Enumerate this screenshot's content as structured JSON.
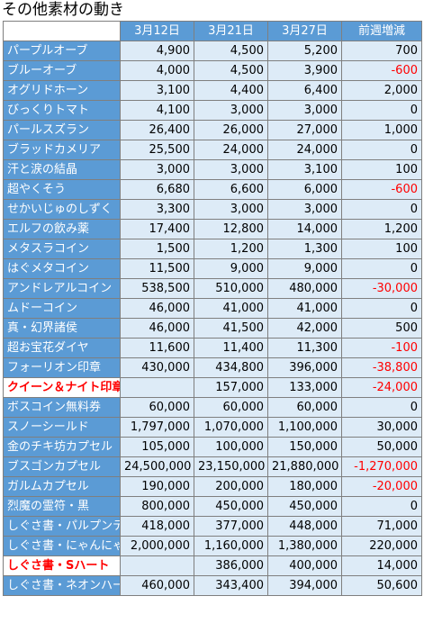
{
  "title": "その他素材の動き",
  "headers": [
    "",
    "3月12日",
    "3月21日",
    "3月27日",
    "前週増減"
  ],
  "rows": [
    {
      "name": "パープルオーブ",
      "v1": "4,900",
      "v2": "4,500",
      "v3": "5,200",
      "diff": "700",
      "neg": false,
      "red": false
    },
    {
      "name": "ブルーオーブ",
      "v1": "4,000",
      "v2": "4,500",
      "v3": "3,900",
      "diff": "-600",
      "neg": true,
      "red": false
    },
    {
      "name": "オグリドホーン",
      "v1": "3,100",
      "v2": "4,400",
      "v3": "6,400",
      "diff": "2,000",
      "neg": false,
      "red": false
    },
    {
      "name": "びっくりトマト",
      "v1": "4,100",
      "v2": "3,000",
      "v3": "3,000",
      "diff": "0",
      "neg": false,
      "red": false
    },
    {
      "name": "パールスズラン",
      "v1": "26,400",
      "v2": "26,000",
      "v3": "27,000",
      "diff": "1,000",
      "neg": false,
      "red": false
    },
    {
      "name": "ブラッドカメリア",
      "v1": "25,500",
      "v2": "24,000",
      "v3": "24,000",
      "diff": "0",
      "neg": false,
      "red": false
    },
    {
      "name": "汗と涙の結晶",
      "v1": "3,000",
      "v2": "3,000",
      "v3": "3,100",
      "diff": "100",
      "neg": false,
      "red": false
    },
    {
      "name": "超やくそう",
      "v1": "6,680",
      "v2": "6,600",
      "v3": "6,000",
      "diff": "-600",
      "neg": true,
      "red": false
    },
    {
      "name": "せかいじゅのしずく",
      "v1": "3,300",
      "v2": "3,000",
      "v3": "3,000",
      "diff": "0",
      "neg": false,
      "red": false
    },
    {
      "name": "エルフの飲み薬",
      "v1": "17,400",
      "v2": "12,800",
      "v3": "14,000",
      "diff": "1,200",
      "neg": false,
      "red": false
    },
    {
      "name": "メタスラコイン",
      "v1": "1,500",
      "v2": "1,200",
      "v3": "1,300",
      "diff": "100",
      "neg": false,
      "red": false
    },
    {
      "name": "はぐメタコイン",
      "v1": "11,500",
      "v2": "9,000",
      "v3": "9,000",
      "diff": "0",
      "neg": false,
      "red": false
    },
    {
      "name": "アンドレアルコイン",
      "v1": "538,500",
      "v2": "510,000",
      "v3": "480,000",
      "diff": "-30,000",
      "neg": true,
      "red": false
    },
    {
      "name": "ムドーコイン",
      "v1": "46,000",
      "v2": "41,000",
      "v3": "41,000",
      "diff": "0",
      "neg": false,
      "red": false
    },
    {
      "name": "真・幻界諸侯",
      "v1": "46,000",
      "v2": "41,500",
      "v3": "42,000",
      "diff": "500",
      "neg": false,
      "red": false
    },
    {
      "name": "超お宝花ダイヤ",
      "v1": "11,600",
      "v2": "11,400",
      "v3": "11,300",
      "diff": "-100",
      "neg": true,
      "red": false
    },
    {
      "name": "フォーリオン印章",
      "v1": "430,000",
      "v2": "434,800",
      "v3": "396,000",
      "diff": "-38,800",
      "neg": true,
      "red": false
    },
    {
      "name": "クイーン＆ナイト印章",
      "v1": "",
      "v2": "157,000",
      "v3": "133,000",
      "diff": "-24,000",
      "neg": true,
      "red": true
    },
    {
      "name": "ボスコイン無料券",
      "v1": "60,000",
      "v2": "60,000",
      "v3": "60,000",
      "diff": "0",
      "neg": false,
      "red": false
    },
    {
      "name": "スノーシールド",
      "v1": "1,797,000",
      "v2": "1,070,000",
      "v3": "1,100,000",
      "diff": "30,000",
      "neg": false,
      "red": false
    },
    {
      "name": "金のチキ坊カプセル",
      "v1": "105,000",
      "v2": "100,000",
      "v3": "150,000",
      "diff": "50,000",
      "neg": false,
      "red": false
    },
    {
      "name": "ブスゴンカプセル",
      "v1": "24,500,000",
      "v2": "23,150,000",
      "v3": "21,880,000",
      "diff": "-1,270,000",
      "neg": true,
      "red": false
    },
    {
      "name": "ガルムカプセル",
      "v1": "190,000",
      "v2": "200,000",
      "v3": "180,000",
      "diff": "-20,000",
      "neg": true,
      "red": false
    },
    {
      "name": "烈魔の霊符・黒",
      "v1": "800,000",
      "v2": "450,000",
      "v3": "450,000",
      "diff": "0",
      "neg": false,
      "red": false
    },
    {
      "name": "しぐさ書・パルプンテ",
      "v1": "418,000",
      "v2": "377,000",
      "v3": "448,000",
      "diff": "71,000",
      "neg": false,
      "red": false
    },
    {
      "name": "しぐさ書・にゃんにゃん",
      "v1": "2,000,000",
      "v2": "1,160,000",
      "v3": "1,380,000",
      "diff": "220,000",
      "neg": false,
      "red": false
    },
    {
      "name": "しぐさ書・Sハート",
      "v1": "",
      "v2": "386,000",
      "v3": "400,000",
      "diff": "14,000",
      "neg": false,
      "red": true
    },
    {
      "name": "しぐさ書・ネオンハート",
      "v1": "460,000",
      "v2": "343,400",
      "v3": "394,000",
      "diff": "50,600",
      "neg": false,
      "red": false
    }
  ]
}
